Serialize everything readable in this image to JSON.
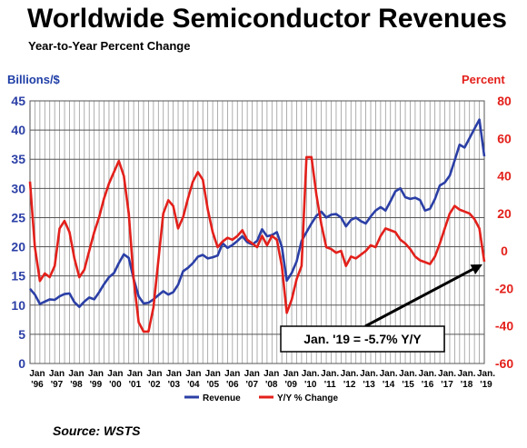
{
  "title": "Worldwide Semiconductor Revenues",
  "subtitle": "Year-to-Year Percent Change",
  "source": "Source: WSTS",
  "colors": {
    "revenue": "#2b3fa6",
    "yoy": "#e3201b",
    "grid": "#9a9a9a"
  },
  "chart_data": {
    "type": "line",
    "title": "Worldwide Semiconductor Revenues",
    "subtitle": "Year-to-Year Percent Change",
    "ylabel_left": "Billions/$",
    "ylabel_right": "Percent",
    "ylim_left": [
      0,
      45
    ],
    "ylim_right": [
      -60,
      80
    ],
    "yticks_left": [
      "0",
      "5",
      "10",
      "15",
      "20",
      "25",
      "30",
      "35",
      "40",
      "45"
    ],
    "yticks_right": [
      "-60",
      "-40",
      "-20",
      "0",
      "20",
      "40",
      "60",
      "80"
    ],
    "xlim": [
      1996.0,
      2019.0
    ],
    "x_tick_labels": [
      {
        "top": "Jan",
        "bottom": "'96"
      },
      {
        "top": "Jan",
        "bottom": "'97"
      },
      {
        "top": "Jan",
        "bottom": "'98"
      },
      {
        "top": "Jan",
        "bottom": "'99"
      },
      {
        "top": "Jan",
        "bottom": "'00"
      },
      {
        "top": "Jan",
        "bottom": "'01"
      },
      {
        "top": "Jan",
        "bottom": "'02"
      },
      {
        "top": "Jan",
        "bottom": "'03"
      },
      {
        "top": "Jan",
        "bottom": "'04"
      },
      {
        "top": "Jan",
        "bottom": "'05"
      },
      {
        "top": "Jan",
        "bottom": "'06"
      },
      {
        "top": "Jan",
        "bottom": "'07"
      },
      {
        "top": "Jan",
        "bottom": "'08"
      },
      {
        "top": "Jan",
        "bottom": "'09"
      },
      {
        "top": "Jan.",
        "bottom": "'10"
      },
      {
        "top": "Jan.",
        "bottom": "'11"
      },
      {
        "top": "Jan.",
        "bottom": "'12"
      },
      {
        "top": "Jan.",
        "bottom": "'13"
      },
      {
        "top": "Jan.",
        "bottom": "'14"
      },
      {
        "top": "Jan.",
        "bottom": "'15"
      },
      {
        "top": "Jan.",
        "bottom": "'16"
      },
      {
        "top": "Jan.",
        "bottom": "'17"
      },
      {
        "top": "Jan.",
        "bottom": "'18"
      },
      {
        "top": "Jan.",
        "bottom": "'19"
      }
    ],
    "grid": true,
    "legend_position": "bottom",
    "series": [
      {
        "name": "Revenue",
        "axis": "left",
        "points": [
          [
            1996.0,
            12.8
          ],
          [
            1996.25,
            11.8
          ],
          [
            1996.5,
            10.2
          ],
          [
            1996.75,
            10.6
          ],
          [
            1997.0,
            11.0
          ],
          [
            1997.25,
            10.9
          ],
          [
            1997.5,
            11.5
          ],
          [
            1997.75,
            11.9
          ],
          [
            1998.0,
            12.0
          ],
          [
            1998.25,
            10.5
          ],
          [
            1998.5,
            9.7
          ],
          [
            1998.75,
            10.6
          ],
          [
            1999.0,
            11.3
          ],
          [
            1999.25,
            11.0
          ],
          [
            1999.5,
            12.2
          ],
          [
            1999.75,
            13.6
          ],
          [
            2000.0,
            14.8
          ],
          [
            2000.25,
            15.5
          ],
          [
            2000.5,
            17.2
          ],
          [
            2000.75,
            18.7
          ],
          [
            2001.0,
            18.1
          ],
          [
            2001.25,
            14.5
          ],
          [
            2001.5,
            11.5
          ],
          [
            2001.75,
            10.3
          ],
          [
            2002.0,
            10.4
          ],
          [
            2002.25,
            11.0
          ],
          [
            2002.5,
            11.7
          ],
          [
            2002.75,
            12.4
          ],
          [
            2003.0,
            11.8
          ],
          [
            2003.25,
            12.2
          ],
          [
            2003.5,
            13.5
          ],
          [
            2003.75,
            15.8
          ],
          [
            2004.0,
            16.4
          ],
          [
            2004.25,
            17.2
          ],
          [
            2004.5,
            18.3
          ],
          [
            2004.75,
            18.6
          ],
          [
            2005.0,
            18.0
          ],
          [
            2005.25,
            18.2
          ],
          [
            2005.5,
            18.5
          ],
          [
            2005.75,
            20.6
          ],
          [
            2006.0,
            19.8
          ],
          [
            2006.25,
            20.3
          ],
          [
            2006.5,
            21.0
          ],
          [
            2006.75,
            21.8
          ],
          [
            2007.0,
            20.8
          ],
          [
            2007.25,
            20.4
          ],
          [
            2007.5,
            21.0
          ],
          [
            2007.75,
            23.0
          ],
          [
            2008.0,
            21.8
          ],
          [
            2008.25,
            22.0
          ],
          [
            2008.5,
            22.5
          ],
          [
            2008.75,
            20.0
          ],
          [
            2009.0,
            14.2
          ],
          [
            2009.25,
            15.5
          ],
          [
            2009.5,
            17.5
          ],
          [
            2009.75,
            21.0
          ],
          [
            2010.0,
            22.5
          ],
          [
            2010.25,
            24.0
          ],
          [
            2010.5,
            25.3
          ],
          [
            2010.75,
            26.0
          ],
          [
            2011.0,
            25.0
          ],
          [
            2011.25,
            25.5
          ],
          [
            2011.5,
            25.6
          ],
          [
            2011.75,
            25.0
          ],
          [
            2012.0,
            23.5
          ],
          [
            2012.25,
            24.6
          ],
          [
            2012.5,
            25.0
          ],
          [
            2012.75,
            24.4
          ],
          [
            2013.0,
            24.0
          ],
          [
            2013.25,
            25.2
          ],
          [
            2013.5,
            26.2
          ],
          [
            2013.75,
            26.8
          ],
          [
            2014.0,
            26.2
          ],
          [
            2014.25,
            27.8
          ],
          [
            2014.5,
            29.5
          ],
          [
            2014.75,
            30.0
          ],
          [
            2015.0,
            28.5
          ],
          [
            2015.25,
            28.2
          ],
          [
            2015.5,
            28.4
          ],
          [
            2015.75,
            28.0
          ],
          [
            2016.0,
            26.2
          ],
          [
            2016.25,
            26.5
          ],
          [
            2016.5,
            28.2
          ],
          [
            2016.75,
            30.5
          ],
          [
            2017.0,
            31.0
          ],
          [
            2017.25,
            32.2
          ],
          [
            2017.5,
            34.8
          ],
          [
            2017.75,
            37.5
          ],
          [
            2018.0,
            37.0
          ],
          [
            2018.25,
            38.6
          ],
          [
            2018.5,
            40.2
          ],
          [
            2018.75,
            41.8
          ],
          [
            2019.0,
            35.5
          ]
        ]
      },
      {
        "name": "Y/Y % Change",
        "axis": "right",
        "points": [
          [
            1996.0,
            37.0
          ],
          [
            1996.25,
            2.0
          ],
          [
            1996.5,
            -16.0
          ],
          [
            1996.75,
            -12.0
          ],
          [
            1997.0,
            -14.0
          ],
          [
            1997.25,
            -8.0
          ],
          [
            1997.5,
            12.0
          ],
          [
            1997.75,
            16.0
          ],
          [
            1998.0,
            10.0
          ],
          [
            1998.25,
            -4.0
          ],
          [
            1998.5,
            -14.0
          ],
          [
            1998.75,
            -10.0
          ],
          [
            1999.0,
            0.0
          ],
          [
            1999.25,
            10.0
          ],
          [
            1999.5,
            18.0
          ],
          [
            1999.75,
            28.0
          ],
          [
            2000.0,
            36.0
          ],
          [
            2000.25,
            42.0
          ],
          [
            2000.5,
            48.0
          ],
          [
            2000.75,
            40.0
          ],
          [
            2001.0,
            20.0
          ],
          [
            2001.25,
            -15.0
          ],
          [
            2001.5,
            -38.0
          ],
          [
            2001.75,
            -43.0
          ],
          [
            2002.0,
            -43.0
          ],
          [
            2002.25,
            -30.0
          ],
          [
            2002.5,
            -5.0
          ],
          [
            2002.75,
            20.0
          ],
          [
            2003.0,
            27.0
          ],
          [
            2003.25,
            24.0
          ],
          [
            2003.5,
            12.0
          ],
          [
            2003.75,
            18.0
          ],
          [
            2004.0,
            28.0
          ],
          [
            2004.25,
            37.0
          ],
          [
            2004.5,
            42.0
          ],
          [
            2004.75,
            38.0
          ],
          [
            2005.0,
            22.0
          ],
          [
            2005.25,
            10.0
          ],
          [
            2005.5,
            2.0
          ],
          [
            2005.75,
            5.0
          ],
          [
            2006.0,
            7.0
          ],
          [
            2006.25,
            6.0
          ],
          [
            2006.5,
            8.0
          ],
          [
            2006.75,
            11.0
          ],
          [
            2007.0,
            6.0
          ],
          [
            2007.25,
            4.0
          ],
          [
            2007.5,
            2.0
          ],
          [
            2007.75,
            8.0
          ],
          [
            2008.0,
            3.0
          ],
          [
            2008.25,
            8.0
          ],
          [
            2008.5,
            6.0
          ],
          [
            2008.75,
            -8.0
          ],
          [
            2009.0,
            -33.0
          ],
          [
            2009.25,
            -26.0
          ],
          [
            2009.5,
            -15.0
          ],
          [
            2009.75,
            -8.0
          ],
          [
            2010.0,
            50.0
          ],
          [
            2010.25,
            50.0
          ],
          [
            2010.5,
            30.0
          ],
          [
            2010.75,
            14.0
          ],
          [
            2011.0,
            2.0
          ],
          [
            2011.25,
            1.0
          ],
          [
            2011.5,
            -1.0
          ],
          [
            2011.75,
            0.0
          ],
          [
            2012.0,
            -8.0
          ],
          [
            2012.25,
            -3.0
          ],
          [
            2012.5,
            -4.0
          ],
          [
            2012.75,
            -2.0
          ],
          [
            2013.0,
            0.0
          ],
          [
            2013.25,
            3.0
          ],
          [
            2013.5,
            2.0
          ],
          [
            2013.75,
            8.0
          ],
          [
            2014.0,
            12.0
          ],
          [
            2014.25,
            11.0
          ],
          [
            2014.5,
            10.0
          ],
          [
            2014.75,
            6.0
          ],
          [
            2015.0,
            4.0
          ],
          [
            2015.25,
            1.0
          ],
          [
            2015.5,
            -3.0
          ],
          [
            2015.75,
            -5.0
          ],
          [
            2016.0,
            -6.0
          ],
          [
            2016.25,
            -7.0
          ],
          [
            2016.5,
            -3.0
          ],
          [
            2016.75,
            4.0
          ],
          [
            2017.0,
            12.0
          ],
          [
            2017.25,
            20.0
          ],
          [
            2017.5,
            24.0
          ],
          [
            2017.75,
            22.0
          ],
          [
            2018.0,
            21.0
          ],
          [
            2018.25,
            20.0
          ],
          [
            2018.5,
            17.0
          ],
          [
            2018.75,
            12.0
          ],
          [
            2019.0,
            -5.7
          ]
        ]
      }
    ],
    "annotation": {
      "text": "Jan. '19 = -5.7% Y/Y",
      "points_to": [
        2019.0,
        -5.7
      ]
    }
  }
}
